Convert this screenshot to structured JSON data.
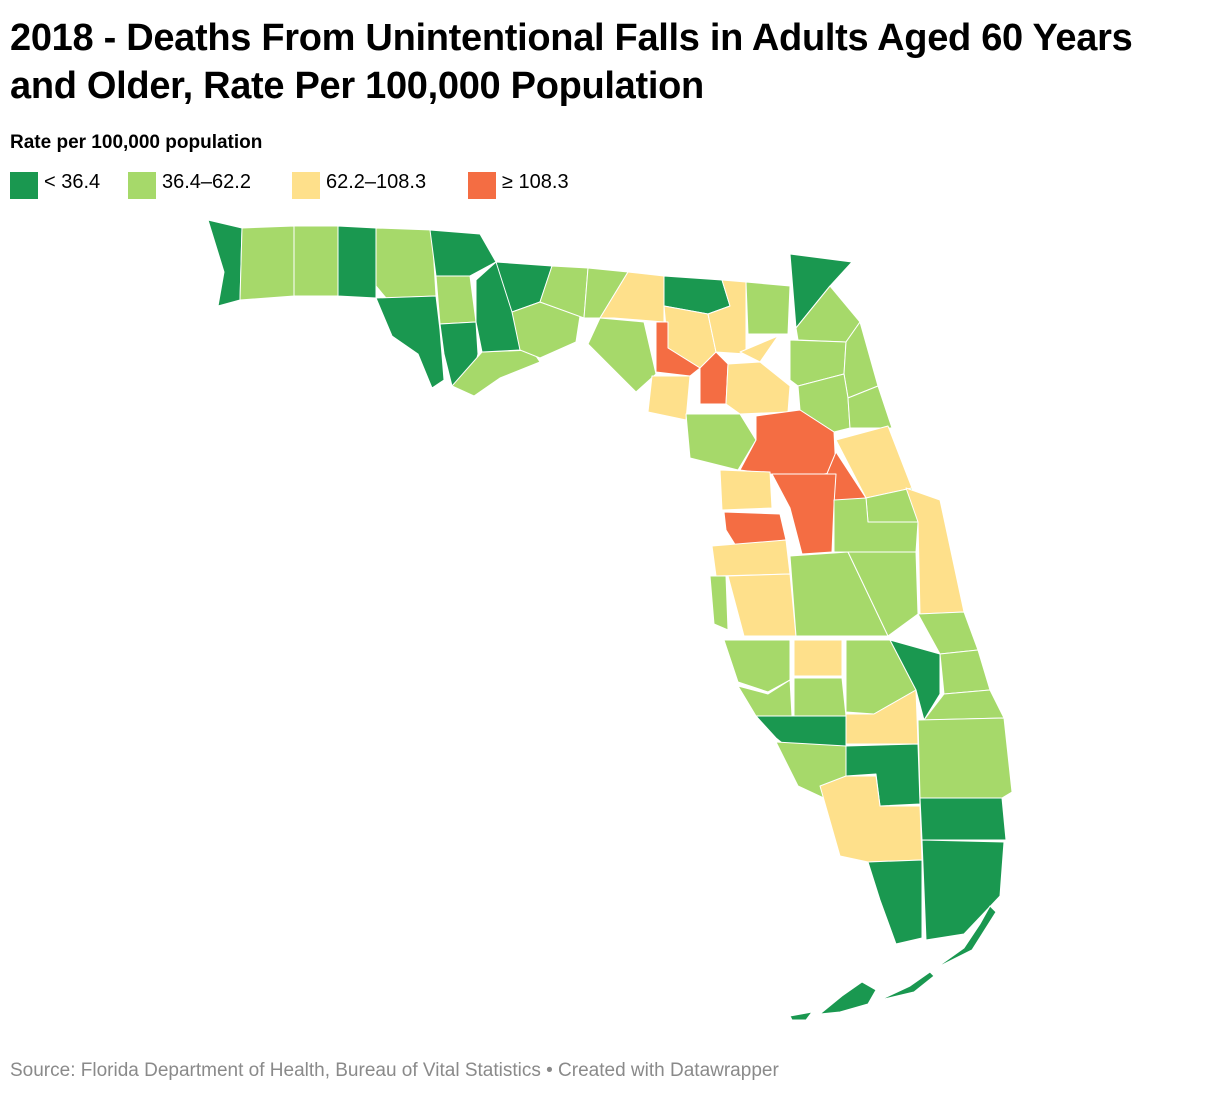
{
  "title": "2018 - Deaths From Unintentional Falls in Adults Aged 60 Years and Older, Rate Per 100,000 Population",
  "legend": {
    "title": "Rate per 100,000 population",
    "items": [
      {
        "label": "< 36.4",
        "color": "#1a9850"
      },
      {
        "label": "36.4–62.2",
        "color": "#a6d96a"
      },
      {
        "label": "62.2–108.3",
        "color": "#fee08b"
      },
      {
        "label": "≥ 108.3",
        "color": "#f46d43"
      }
    ]
  },
  "map": {
    "state": "Florida",
    "palette": {
      "low": "#1a9850",
      "mid_low": "#a6d96a",
      "mid_high": "#fee08b",
      "high": "#f46d43"
    }
  },
  "footer": {
    "source": "Source: Florida Department of Health, Bureau of Vital Statistics • Created with Datawrapper"
  }
}
